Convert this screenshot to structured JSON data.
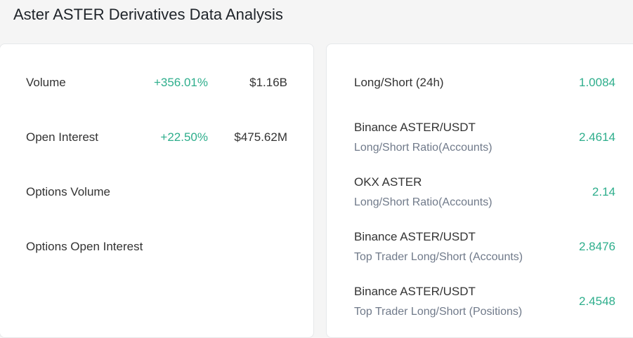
{
  "header": {
    "title": "Aster ASTER Derivatives Data Analysis"
  },
  "left_panel": {
    "rows": [
      {
        "label": "Volume",
        "change": "+356.01%",
        "value": "$1.16B"
      },
      {
        "label": "Open Interest",
        "change": "+22.50%",
        "value": "$475.62M"
      },
      {
        "label": "Options Volume"
      },
      {
        "label": "Options Open Interest"
      }
    ]
  },
  "right_panel": {
    "rows": [
      {
        "title": "Long/Short (24h)",
        "value": "1.0084"
      },
      {
        "title": "Binance ASTER/USDT",
        "subtitle": "Long/Short Ratio(Accounts)",
        "value": "2.4614"
      },
      {
        "title": "OKX ASTER",
        "subtitle": "Long/Short Ratio(Accounts)",
        "value": "2.14"
      },
      {
        "title": "Binance ASTER/USDT",
        "subtitle": "Top Trader Long/Short (Accounts)",
        "value": "2.8476"
      },
      {
        "title": "Binance ASTER/USDT",
        "subtitle": "Top Trader Long/Short (Positions)",
        "value": "2.4548"
      }
    ]
  }
}
